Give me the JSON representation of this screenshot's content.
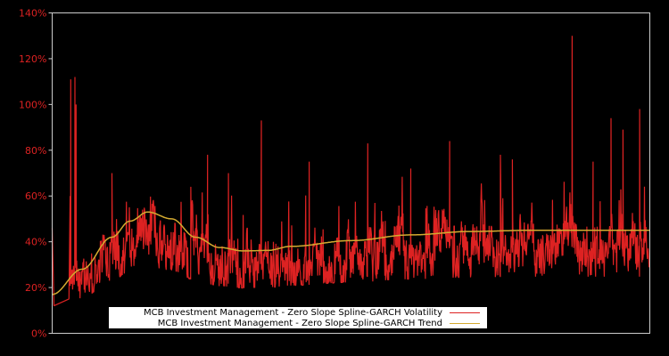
{
  "chart_data": {
    "type": "line",
    "title": "",
    "xlabel": "",
    "ylabel": "",
    "ylim": [
      0,
      140
    ],
    "y_ticks": [
      "0%",
      "20%",
      "40%",
      "60%",
      "80%",
      "100%",
      "120%",
      "140%"
    ],
    "y_tick_values": [
      0,
      20,
      40,
      60,
      80,
      100,
      120,
      140
    ],
    "x_ticks": [],
    "grid": false,
    "legend_position": "lower-center",
    "background": "#000000",
    "axis_color": "#cccccc",
    "tick_label_color": "#dd2222",
    "series": [
      {
        "name": "MCB Investment Management - Zero Slope Spline-GARCH Volatility",
        "color": "#dd2222",
        "note": "noisy daily series, baseline ~25-60%, spikes listed as [x_fraction, value%]",
        "start_segment": [
          [
            0.0,
            46
          ],
          [
            0.003,
            12
          ],
          [
            0.028,
            15
          ],
          [
            0.03,
            60
          ]
        ],
        "spikes": [
          [
            0.031,
            111
          ],
          [
            0.038,
            112
          ],
          [
            0.04,
            100
          ],
          [
            0.1,
            70
          ],
          [
            0.232,
            64
          ],
          [
            0.26,
            78
          ],
          [
            0.295,
            70
          ],
          [
            0.35,
            93
          ],
          [
            0.43,
            75
          ],
          [
            0.528,
            83
          ],
          [
            0.6,
            72
          ],
          [
            0.665,
            84
          ],
          [
            0.75,
            78
          ],
          [
            0.77,
            76
          ],
          [
            0.87,
            130
          ],
          [
            0.905,
            75
          ],
          [
            0.935,
            94
          ],
          [
            0.955,
            89
          ],
          [
            0.983,
            98
          ]
        ]
      },
      {
        "name": "MCB Investment Management - Zero Slope Spline-GARCH Trend",
        "color": "#d4aa30",
        "x": [
          0.0,
          0.05,
          0.1,
          0.13,
          0.16,
          0.2,
          0.24,
          0.28,
          0.32,
          0.36,
          0.4,
          0.5,
          0.6,
          0.7,
          0.8,
          0.9,
          1.0
        ],
        "values": [
          17,
          28,
          42,
          49,
          53,
          50,
          42,
          37.5,
          36,
          36.2,
          38,
          40.5,
          43,
          44.5,
          45,
          45,
          45
        ]
      }
    ]
  },
  "legend": {
    "items": [
      {
        "label": "MCB Investment Management - Zero Slope Spline-GARCH Volatility",
        "color": "#dd2222"
      },
      {
        "label": "MCB Investment Management - Zero Slope Spline-GARCH Trend",
        "color": "#d4aa30"
      }
    ]
  }
}
